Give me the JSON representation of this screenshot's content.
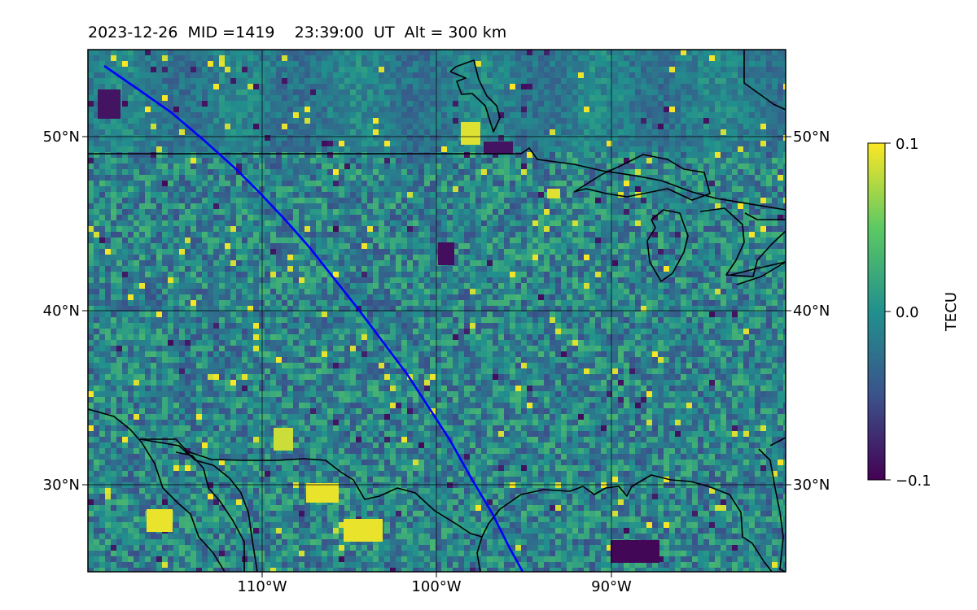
{
  "header": {
    "date": "2023-12-26",
    "mid": "MID =1419",
    "time": "23:39:00  UT",
    "alt": "Alt = 300 km"
  },
  "map": {
    "lon_range": [
      -120,
      -80
    ],
    "lat_range": [
      25,
      55
    ],
    "lon_ticks": [
      {
        "value": -110,
        "label": "110°W"
      },
      {
        "value": -100,
        "label": "100°W"
      },
      {
        "value": -90,
        "label": "90°W"
      }
    ],
    "lat_ticks": [
      {
        "value": 50,
        "label": "50°N"
      },
      {
        "value": 40,
        "label": "40°N"
      },
      {
        "value": 30,
        "label": "30°N"
      }
    ],
    "track_color": "#0000ff",
    "coast_color": "#000000",
    "colormap": "viridis"
  },
  "colorbar": {
    "label": "TECU",
    "min": -0.1,
    "max": 0.1,
    "ticks": [
      {
        "value": 0.1,
        "label": "0.1"
      },
      {
        "value": 0.0,
        "label": "0.0"
      },
      {
        "value": -0.1,
        "label": "−0.1"
      }
    ]
  }
}
